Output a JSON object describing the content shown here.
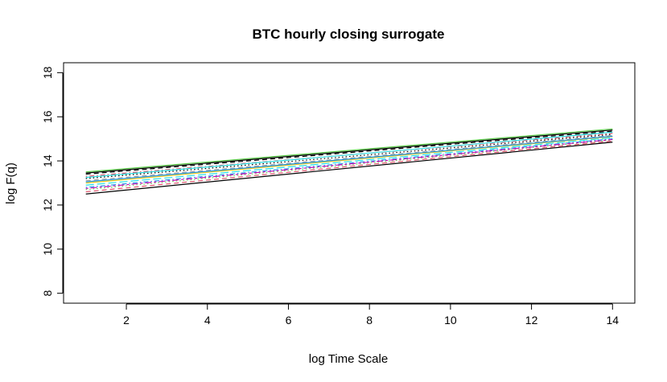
{
  "chart_data": {
    "type": "line",
    "title": "BTC hourly closing surrogate",
    "xlabel": "log Time Scale",
    "ylabel": "log F(q)",
    "xlim": [
      0.45,
      14.55
    ],
    "ylim": [
      7.55,
      18.45
    ],
    "xticks": [
      2,
      4,
      6,
      8,
      10,
      12,
      14
    ],
    "yticks": [
      8,
      10,
      12,
      14,
      16,
      18
    ],
    "grid": false,
    "legend": "none",
    "series": [
      {
        "color": "#000000",
        "dash": "solid",
        "x": [
          1,
          14
        ],
        "y": [
          12.5,
          14.85
        ]
      },
      {
        "color": "#DF536B",
        "dash": "dashed",
        "x": [
          1,
          14
        ],
        "y": [
          12.6,
          14.9
        ]
      },
      {
        "color": "#61D04F",
        "dash": "dotted",
        "x": [
          1,
          14
        ],
        "y": [
          12.7,
          14.95
        ]
      },
      {
        "color": "#2297E6",
        "dash": "dotdash",
        "x": [
          1,
          14
        ],
        "y": [
          12.8,
          15.0
        ]
      },
      {
        "color": "#28E2E5",
        "dash": "longdash",
        "x": [
          1,
          14
        ],
        "y": [
          12.9,
          15.05
        ]
      },
      {
        "color": "#CD0BBC",
        "dash": "twodash",
        "x": [
          1,
          14
        ],
        "y": [
          12.75,
          14.97
        ]
      },
      {
        "color": "#F5C710",
        "dash": "solid",
        "x": [
          1,
          14
        ],
        "y": [
          13.0,
          15.1
        ]
      },
      {
        "color": "#9E9E9E",
        "dash": "dashed",
        "x": [
          1,
          14
        ],
        "y": [
          13.1,
          15.15
        ]
      },
      {
        "color": "#000000",
        "dash": "dotted",
        "x": [
          1,
          14
        ],
        "y": [
          13.2,
          15.2
        ]
      },
      {
        "color": "#DF536B",
        "dash": "dotdash",
        "x": [
          1,
          14
        ],
        "y": [
          13.3,
          15.25
        ]
      },
      {
        "color": "#2297E6",
        "dash": "solid",
        "x": [
          1,
          14
        ],
        "y": [
          13.05,
          15.12
        ]
      },
      {
        "color": "#28E2E5",
        "dash": "solid",
        "x": [
          1,
          14
        ],
        "y": [
          13.25,
          15.3
        ]
      },
      {
        "color": "#000000",
        "dash": "dashed",
        "x": [
          1,
          14
        ],
        "y": [
          13.4,
          15.35
        ]
      },
      {
        "color": "#61D04F",
        "dash": "solid",
        "x": [
          1,
          14
        ],
        "y": [
          13.5,
          15.45
        ]
      },
      {
        "color": "#000000",
        "dash": "solid",
        "x": [
          1,
          14
        ],
        "y": [
          13.45,
          15.4
        ]
      }
    ]
  }
}
